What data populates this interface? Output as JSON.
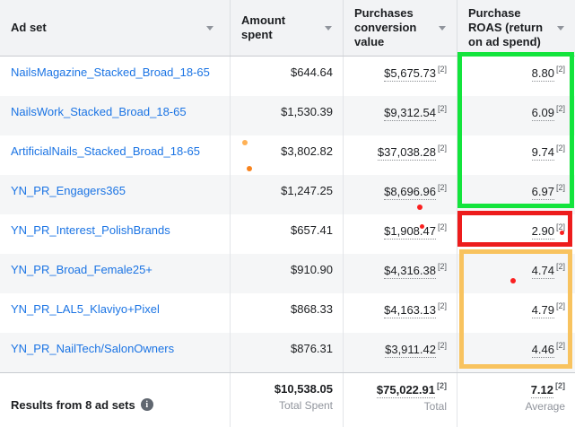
{
  "columns": [
    {
      "label": "Ad set"
    },
    {
      "label": "Amount spent"
    },
    {
      "label": "Purchases conversion value"
    },
    {
      "label": "Purchase ROAS (return on ad spend)"
    }
  ],
  "rows": [
    {
      "name": "NailsMagazine_Stacked_Broad_18-65",
      "spent": "$644.64",
      "conv": "$5,675.73",
      "roas": "8.80"
    },
    {
      "name": "NailsWork_Stacked_Broad_18-65",
      "spent": "$1,530.39",
      "conv": "$9,312.54",
      "roas": "6.09"
    },
    {
      "name": "ArtificialNails_Stacked_Broad_18-65",
      "spent": "$3,802.82",
      "conv": "$37,038.28",
      "roas": "9.74"
    },
    {
      "name": "YN_PR_Engagers365",
      "spent": "$1,247.25",
      "conv": "$8,696.96",
      "roas": "6.97"
    },
    {
      "name": "YN_PR_Interest_PolishBrands",
      "spent": "$657.41",
      "conv": "$1,908.47",
      "roas": "2.90"
    },
    {
      "name": "YN_PR_Broad_Female25+",
      "spent": "$910.90",
      "conv": "$4,316.38",
      "roas": "4.74"
    },
    {
      "name": "YN_PR_LAL5_Klaviyo+Pixel",
      "spent": "$868.33",
      "conv": "$4,163.13",
      "roas": "4.79"
    },
    {
      "name": "YN_PR_NailTech/SalonOwners",
      "spent": "$876.31",
      "conv": "$3,911.42",
      "roas": "4.46"
    }
  ],
  "footer": {
    "label": "Results from 8 ad sets",
    "info_icon_glyph": "i",
    "spent_total": "$10,538.05",
    "spent_caption": "Total Spent",
    "conv_total": "$75,022.91",
    "conv_caption": "Total",
    "roas_avg": "7.12",
    "roas_caption": "Average"
  },
  "marks": {
    "footnote": "[2]"
  },
  "colors": {
    "link_blue": "#1b74e4",
    "header_bg": "#f2f3f5",
    "stripe_bg": "#f5f6f7",
    "green_box": "#13e43c",
    "red_box": "#ed1c1c",
    "orange_box": "#f8c35f",
    "dot_red": "#fa2020",
    "dot_orange_light": "#ffb155",
    "dot_orange_dark": "#f8831d"
  }
}
